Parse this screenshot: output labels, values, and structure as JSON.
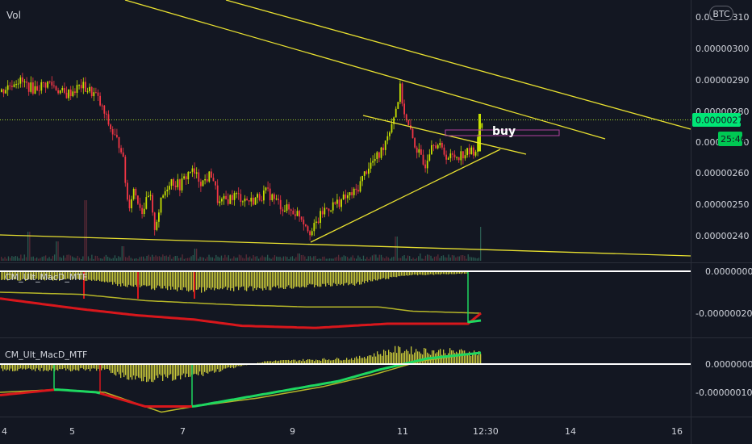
{
  "header": {
    "volume_label": "Vol",
    "currency_badge": "BTC"
  },
  "price_axis": {
    "ticks": [
      "0.00000310",
      "0.00000300",
      "0.00000290",
      "0.00000280",
      "0.00000270",
      "0.00000260",
      "0.00000250",
      "0.00000240"
    ],
    "current_price": "0.00000277",
    "countdown": "25:46",
    "current_price_color": "#00e676"
  },
  "time_axis": {
    "ticks": [
      "4",
      "5",
      "7",
      "9",
      "11",
      "12:30",
      "14",
      "16"
    ]
  },
  "annotations": {
    "buy_label": "buy"
  },
  "macd1": {
    "title": "CM_Ult_MacD_MTF",
    "ticks": [
      "0.00000000",
      "-0.00000020"
    ]
  },
  "macd2": {
    "title": "CM_Ult_MacD_MTF",
    "ticks": [
      "0.00000000",
      "-0.00000010"
    ]
  },
  "colors": {
    "background": "#131722",
    "candle_up": "#c6e000",
    "candle_down": "#f23645",
    "trendline": "#e8e030",
    "macd_hist": "#c8c83a",
    "signal_green": "#1ed760",
    "signal_red": "#d8171c"
  },
  "chart_data": {
    "type": "candlestick",
    "symbol_unit": "BTC",
    "x": [
      "4",
      "5",
      "7",
      "9",
      "11",
      "12:30",
      "14",
      "16"
    ],
    "price_range": [
      2.3e-06,
      3.1e-06
    ],
    "price_trace": [
      [
        0,
        2.86e-06
      ],
      [
        20,
        2.9e-06
      ],
      [
        40,
        2.87e-06
      ],
      [
        60,
        2.89e-06
      ],
      [
        80,
        2.85e-06
      ],
      [
        100,
        2.88e-06
      ],
      [
        118,
        2.85e-06
      ],
      [
        130,
        2.78e-06
      ],
      [
        140,
        2.72e-06
      ],
      [
        150,
        2.68e-06
      ],
      [
        158,
        2.49e-06
      ],
      [
        165,
        2.55e-06
      ],
      [
        175,
        2.48e-06
      ],
      [
        185,
        2.53e-06
      ],
      [
        190,
        2.42e-06
      ],
      [
        200,
        2.52e-06
      ],
      [
        210,
        2.58e-06
      ],
      [
        222,
        2.56e-06
      ],
      [
        235,
        2.61e-06
      ],
      [
        250,
        2.57e-06
      ],
      [
        262,
        2.6e-06
      ],
      [
        270,
        2.5e-06
      ],
      [
        290,
        2.53e-06
      ],
      [
        310,
        2.51e-06
      ],
      [
        330,
        2.54e-06
      ],
      [
        350,
        2.49e-06
      ],
      [
        370,
        2.47e-06
      ],
      [
        385,
        2.41e-06
      ],
      [
        400,
        2.48e-06
      ],
      [
        420,
        2.51e-06
      ],
      [
        440,
        2.54e-06
      ],
      [
        455,
        2.62e-06
      ],
      [
        470,
        2.66e-06
      ],
      [
        483,
        2.75e-06
      ],
      [
        490,
        2.81e-06
      ],
      [
        495,
        2.87e-06
      ],
      [
        502,
        2.77e-06
      ],
      [
        512,
        2.7e-06
      ],
      [
        525,
        2.62e-06
      ],
      [
        535,
        2.71e-06
      ],
      [
        545,
        2.68e-06
      ],
      [
        555,
        2.65e-06
      ],
      [
        570,
        2.66e-06
      ],
      [
        585,
        2.67e-06
      ],
      [
        590,
        2.68e-06
      ],
      [
        595,
        2.77e-06
      ]
    ],
    "volume_trace": [
      [
        35,
        0.12
      ],
      [
        70,
        0.08
      ],
      [
        105,
        0.25
      ],
      [
        152,
        0.06
      ],
      [
        242,
        0.05
      ],
      [
        370,
        0.03
      ],
      [
        490,
        0.1
      ],
      [
        520,
        0.03
      ],
      [
        596,
        0.14
      ]
    ],
    "macd1_hist_trace": [
      [
        0,
        -4e-08
      ],
      [
        110,
        -4e-08
      ],
      [
        160,
        -7e-08
      ],
      [
        240,
        -9e-08
      ],
      [
        330,
        -8e-08
      ],
      [
        440,
        -6e-08
      ],
      [
        500,
        -2e-08
      ],
      [
        580,
        -1e-08
      ]
    ],
    "macd1_signal_yellow": [
      [
        0,
        -1e-07
      ],
      [
        100,
        -1.1e-07
      ],
      [
        180,
        -1.4e-07
      ],
      [
        290,
        -1.6e-07
      ],
      [
        380,
        -1.7e-07
      ],
      [
        470,
        -1.7e-07
      ],
      [
        510,
        -1.9e-07
      ],
      [
        596,
        -2e-07
      ]
    ],
    "macd1_signal_red": [
      [
        0,
        -1.3e-07
      ],
      [
        100,
        -1.8e-07
      ],
      [
        170,
        -2.1e-07
      ],
      [
        240,
        -2.3e-07
      ],
      [
        300,
        -2.6e-07
      ],
      [
        390,
        -2.7e-07
      ],
      [
        480,
        -2.5e-07
      ],
      [
        580,
        -2.5e-07
      ],
      [
        596,
        -2e-07
      ]
    ],
    "macd2_hist_trace": [
      [
        0,
        -2e-08
      ],
      [
        130,
        -2e-08
      ],
      [
        160,
        -5e-08
      ],
      [
        220,
        -5e-08
      ],
      [
        330,
        1e-08
      ],
      [
        440,
        2e-08
      ],
      [
        490,
        5e-08
      ],
      [
        596,
        4e-08
      ]
    ],
    "macd2_signal_yellow": [
      [
        0,
        -1e-07
      ],
      [
        70,
        -9e-08
      ],
      [
        130,
        -1e-07
      ],
      [
        200,
        -1.7e-07
      ],
      [
        240,
        -1.5e-07
      ],
      [
        320,
        -1.2e-07
      ],
      [
        400,
        -8e-08
      ],
      [
        460,
        -4e-08
      ],
      [
        520,
        1e-08
      ],
      [
        596,
        4e-08
      ]
    ],
    "macd2_signal_main": [
      [
        0,
        -1.1e-07
      ],
      [
        70,
        -9e-08
      ],
      [
        120,
        -1e-07
      ],
      [
        180,
        -1.5e-07
      ],
      [
        240,
        -1.5e-07
      ],
      [
        320,
        -1.1e-07
      ],
      [
        420,
        -6e-08
      ],
      [
        470,
        -2e-08
      ],
      [
        530,
        2e-08
      ],
      [
        596,
        4e-08
      ]
    ]
  }
}
